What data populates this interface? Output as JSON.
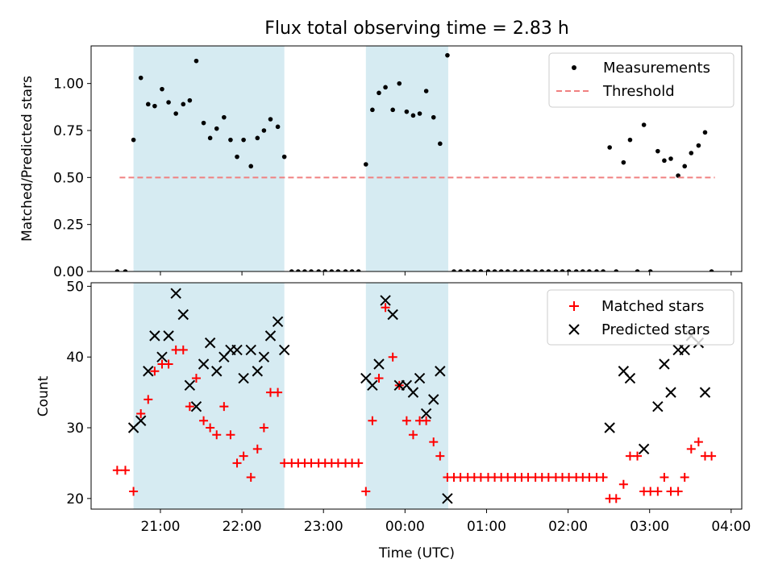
{
  "chart_data": {
    "type": "scatter",
    "title": "Flux total observing time = 2.83 h",
    "xlabel": "Time (UTC)",
    "x_unit": "hours past 20:00 UTC",
    "x_ticks": [
      {
        "v": 1,
        "label": "21:00"
      },
      {
        "v": 2,
        "label": "22:00"
      },
      {
        "v": 3,
        "label": "23:00"
      },
      {
        "v": 4,
        "label": "00:00"
      },
      {
        "v": 5,
        "label": "01:00"
      },
      {
        "v": 6,
        "label": "02:00"
      },
      {
        "v": 7,
        "label": "03:00"
      },
      {
        "v": 8,
        "label": "04:00"
      }
    ],
    "xlim": [
      0.15,
      8.13
    ],
    "shaded_intervals": [
      [
        0.67,
        2.52
      ],
      [
        3.52,
        4.53
      ]
    ],
    "shade_color": "#add8e6",
    "panels": [
      {
        "id": "top",
        "ylabel": "Matched/Predicted stars",
        "ylim": [
          0,
          1.2
        ],
        "y_ticks": [
          {
            "v": 0,
            "label": "0.00"
          },
          {
            "v": 0.25,
            "label": "0.25"
          },
          {
            "v": 0.5,
            "label": "0.50"
          },
          {
            "v": 0.75,
            "label": "0.75"
          },
          {
            "v": 1.0,
            "label": "1.00"
          }
        ],
        "legend": [
          "Measurements",
          "Threshold"
        ],
        "series": [
          {
            "name": "Measurements",
            "marker": "dot",
            "color": "#000000",
            "x": [
              0.47,
              0.57,
              0.67,
              0.76,
              0.85,
              0.93,
              1.02,
              1.1,
              1.19,
              1.28,
              1.36,
              1.44,
              1.53,
              1.61,
              1.69,
              1.78,
              1.86,
              1.94,
              2.02,
              2.11,
              2.19,
              2.27,
              2.35,
              2.44,
              2.52,
              2.61,
              2.69,
              2.77,
              2.85,
              2.94,
              3.02,
              3.1,
              3.18,
              3.27,
              3.35,
              3.43,
              3.52,
              3.6,
              3.68,
              3.76,
              3.85,
              3.93,
              4.02,
              4.1,
              4.18,
              4.26,
              4.35,
              4.43,
              4.52,
              4.6,
              4.68,
              4.77,
              4.85,
              4.93,
              5.02,
              5.1,
              5.18,
              5.26,
              5.35,
              5.43,
              5.51,
              5.6,
              5.68,
              5.76,
              5.85,
              5.93,
              6.01,
              6.1,
              6.18,
              6.26,
              6.35,
              6.43,
              6.51,
              6.59,
              6.68,
              6.76,
              6.85,
              6.93,
              7.01,
              7.1,
              7.18,
              7.26,
              7.35,
              7.43,
              7.51,
              7.6,
              7.68,
              7.76
            ],
            "y": [
              0,
              0,
              0.7,
              1.03,
              0.89,
              0.88,
              0.97,
              0.9,
              0.84,
              0.89,
              0.91,
              1.12,
              0.79,
              0.71,
              0.76,
              0.82,
              0.7,
              0.61,
              0.7,
              0.56,
              0.71,
              0.75,
              0.81,
              0.77,
              0.61,
              0,
              0,
              0,
              0,
              0,
              0,
              0,
              0,
              0,
              0,
              0,
              0.57,
              0.86,
              0.95,
              0.98,
              0.86,
              1.0,
              0.85,
              0.83,
              0.84,
              0.96,
              0.82,
              0.68,
              1.15,
              0,
              0,
              0,
              0,
              0,
              0,
              0,
              0,
              0,
              0,
              0,
              0,
              0,
              0,
              0,
              0,
              0,
              0,
              0,
              0,
              0,
              0,
              0,
              0.66,
              0,
              0.58,
              0.7,
              0,
              0.78,
              0,
              0.64,
              0.59,
              0.6,
              0.51,
              0.56,
              0.63,
              0.67,
              0.74,
              0
            ]
          },
          {
            "name": "Threshold",
            "marker": "dashed-line",
            "color": "#f08080",
            "x": [
              0.5,
              7.8
            ],
            "y": [
              0.5,
              0.5
            ]
          }
        ]
      },
      {
        "id": "bottom",
        "ylabel": "Count",
        "ylim": [
          18.5,
          50.5
        ],
        "y_ticks": [
          {
            "v": 20,
            "label": "20"
          },
          {
            "v": 30,
            "label": "30"
          },
          {
            "v": 40,
            "label": "40"
          },
          {
            "v": 50,
            "label": "50"
          }
        ],
        "legend": [
          "Matched stars",
          "Predicted stars"
        ],
        "series": [
          {
            "name": "Matched stars",
            "marker": "plus",
            "color": "#ff0000",
            "x": [
              0.47,
              0.57,
              0.67,
              0.76,
              0.85,
              0.93,
              1.02,
              1.1,
              1.19,
              1.28,
              1.36,
              1.44,
              1.53,
              1.61,
              1.69,
              1.78,
              1.86,
              1.94,
              2.02,
              2.11,
              2.19,
              2.27,
              2.35,
              2.44,
              2.52,
              2.61,
              2.69,
              2.77,
              2.85,
              2.94,
              3.02,
              3.1,
              3.18,
              3.27,
              3.35,
              3.43,
              3.52,
              3.6,
              3.68,
              3.76,
              3.85,
              3.93,
              4.02,
              4.1,
              4.18,
              4.26,
              4.35,
              4.43,
              4.52,
              4.6,
              4.68,
              4.77,
              4.85,
              4.93,
              5.02,
              5.1,
              5.18,
              5.26,
              5.35,
              5.43,
              5.51,
              5.6,
              5.68,
              5.76,
              5.85,
              5.93,
              6.01,
              6.1,
              6.18,
              6.26,
              6.35,
              6.43,
              6.51,
              6.59,
              6.68,
              6.76,
              6.85,
              6.93,
              7.01,
              7.1,
              7.18,
              7.26,
              7.35,
              7.43,
              7.51,
              7.6,
              7.68,
              7.76
            ],
            "y": [
              24,
              24,
              21,
              32,
              34,
              38,
              39,
              39,
              41,
              41,
              33,
              37,
              31,
              30,
              29,
              33,
              29,
              25,
              26,
              23,
              27,
              30,
              35,
              35,
              25,
              25,
              25,
              25,
              25,
              25,
              25,
              25,
              25,
              25,
              25,
              25,
              21,
              31,
              37,
              47,
              40,
              36,
              31,
              29,
              31,
              31,
              28,
              26,
              23,
              23,
              23,
              23,
              23,
              23,
              23,
              23,
              23,
              23,
              23,
              23,
              23,
              23,
              23,
              23,
              23,
              23,
              23,
              23,
              23,
              23,
              23,
              23,
              20,
              20,
              22,
              26,
              26,
              21,
              21,
              21,
              23,
              21,
              21,
              23,
              27,
              28,
              26,
              26
            ]
          },
          {
            "name": "Predicted stars",
            "marker": "x",
            "color": "#000000",
            "x": [
              0.67,
              0.76,
              0.85,
              0.93,
              1.02,
              1.1,
              1.19,
              1.28,
              1.36,
              1.44,
              1.53,
              1.61,
              1.69,
              1.78,
              1.86,
              1.94,
              2.02,
              2.11,
              2.19,
              2.27,
              2.35,
              2.44,
              2.52,
              3.52,
              3.6,
              3.68,
              3.76,
              3.85,
              3.93,
              4.02,
              4.1,
              4.18,
              4.26,
              4.35,
              4.43,
              4.52,
              6.51,
              6.68,
              6.76,
              6.93,
              7.1,
              7.18,
              7.26,
              7.35,
              7.43,
              7.51,
              7.6,
              7.68
            ],
            "y": [
              30,
              31,
              38,
              43,
              40,
              43,
              49,
              46,
              36,
              33,
              39,
              42,
              38,
              40,
              41,
              41,
              37,
              41,
              38,
              40,
              43,
              45,
              41,
              37,
              36,
              39,
              48,
              46,
              36,
              36,
              35,
              37,
              32,
              34,
              38,
              20,
              30,
              38,
              37,
              27,
              33,
              39,
              35,
              41,
              41,
              43,
              42,
              35
            ]
          }
        ]
      }
    ]
  }
}
